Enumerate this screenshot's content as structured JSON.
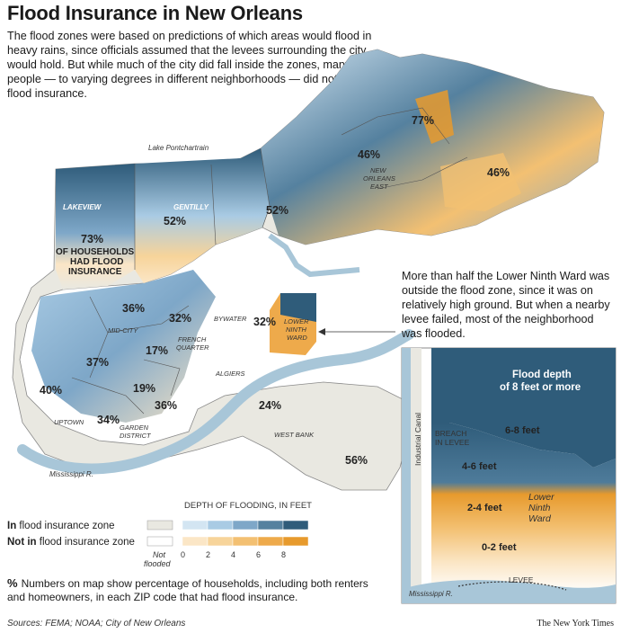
{
  "title": "Flood Insurance in New Orleans",
  "intro": "The flood zones were based on predictions of which areas would flood in heavy rains, since officials assumed that the levees surrounding the city would hold. But while much of the city did fall inside the zones, many people — to varying degrees in different neighborhoods — did not have flood insurance.",
  "callout": "More than half the Lower Ninth Ward was outside the flood zone, since it was on relatively high ground. But when a nearby levee failed, most of the neighborhood was flooded.",
  "map": {
    "water_labels": {
      "lake": "Lake Pontchartrain",
      "river": "Mississippi R."
    },
    "neighborhoods": {
      "lakeview": "LAKEVIEW",
      "gentilly": "GENTILLY",
      "new_orleans_east_1": "NEW",
      "new_orleans_east_2": "ORLEANS",
      "new_orleans_east_3": "EAST",
      "mid_city": "MID-CITY",
      "french_quarter_1": "FRENCH",
      "french_quarter_2": "QUARTER",
      "bywater": "BYWATER",
      "lower_ninth_1": "LOWER",
      "lower_ninth_2": "NINTH",
      "lower_ninth_3": "WARD",
      "algiers": "ALGIERS",
      "uptown": "UPTOWN",
      "garden_1": "GARDEN",
      "garden_2": "DISTRICT",
      "west_bank": "WEST BANK"
    },
    "percentages": {
      "lakeview": "73%",
      "lakeview_note_1": "OF HOUSEHOLDS",
      "lakeview_note_2": "HAD FLOOD",
      "lakeview_note_3": "INSURANCE",
      "gentilly": "52%",
      "east_central": "52%",
      "noe_west": "46%",
      "noe_north": "77%",
      "noe_east": "46%",
      "mid_city": "36%",
      "treme": "32%",
      "french_quarter": "17%",
      "bywater": "32%",
      "central": "37%",
      "uptown_west": "40%",
      "garden_north": "19%",
      "garden_east": "36%",
      "uptown": "34%",
      "algiers": "24%",
      "west_bank": "56%"
    }
  },
  "legend": {
    "header": "DEPTH OF FLOODING, IN FEET",
    "in_zone_bold": "In",
    "in_zone_rest": " flood insurance zone",
    "not_zone_bold": "Not in",
    "not_zone_rest": " flood insurance zone",
    "not_flooded_1": "Not",
    "not_flooded_2": "flooded",
    "ticks": [
      "0",
      "2",
      "4",
      "6",
      "8"
    ],
    "colors": {
      "not_flooded_in": "#e9e8e1",
      "not_flooded_out": "#ffffff",
      "in_zone": [
        "#d3e5f2",
        "#a9cbe4",
        "#7ea7c8",
        "#55819f",
        "#2f5c7a"
      ],
      "not_zone": [
        "#fbe6c6",
        "#f7d49a",
        "#f3c072",
        "#eeaa4b",
        "#e79a2d"
      ]
    }
  },
  "inset": {
    "canal": "Industrial Canal",
    "breach_1": "BREACH",
    "breach_2": "IN LEVEE",
    "depth_8_1": "Flood depth",
    "depth_8_2": "of 8 feet or more",
    "depth_6_8": "6-8 feet",
    "depth_4_6": "4-6 feet",
    "depth_2_4": "2-4 feet",
    "depth_0_2": "0-2 feet",
    "ward_1": "Lower",
    "ward_2": "Ninth",
    "ward_3": "Ward",
    "levee": "LEVEE",
    "river": "Mississippi R."
  },
  "footnote_symbol": "%",
  "footnote": "Numbers on map show percentage of households, including both renters and homeowners, in each ZIP code that had flood insurance.",
  "sources": "Sources: FEMA; NOAA; City of New Orleans",
  "credit": "The New York Times"
}
